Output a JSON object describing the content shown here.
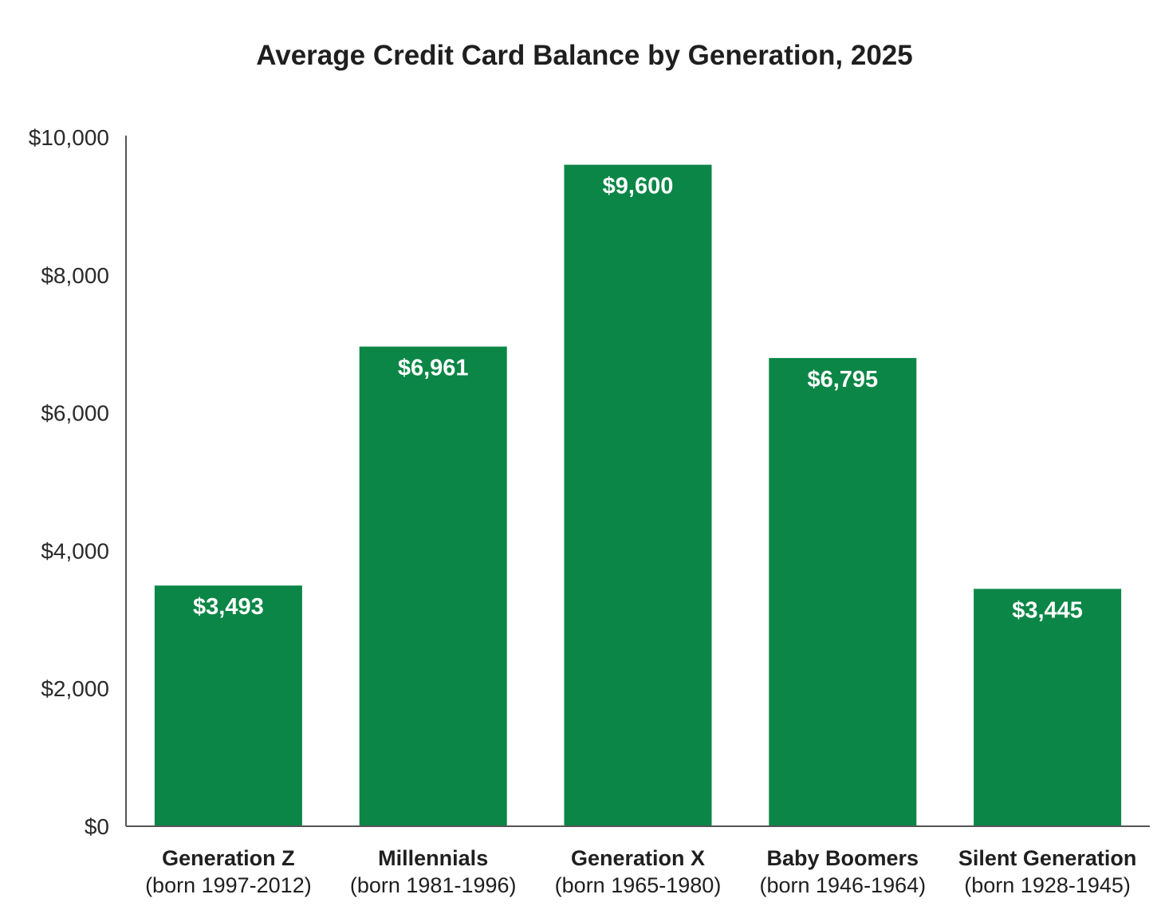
{
  "chart_data": {
    "type": "bar",
    "title": "Average Credit Card Balance by Generation, 2025",
    "xlabel": "",
    "ylabel": "",
    "ylim": [
      0,
      10000
    ],
    "yticks": [
      0,
      2000,
      4000,
      6000,
      8000,
      10000
    ],
    "ytick_labels": [
      "$0",
      "$2,000",
      "$4,000",
      "$6,000",
      "$8,000",
      "$10,000"
    ],
    "grid": false,
    "categories": [
      {
        "name": "Generation Z",
        "born": "(born 1997-2012)"
      },
      {
        "name": "Millennials",
        "born": "(born 1981-1996)"
      },
      {
        "name": "Generation X",
        "born": "(born 1965-1980)"
      },
      {
        "name": "Baby Boomers",
        "born": "(born 1946-1964)"
      },
      {
        "name": "Silent Generation",
        "born": "(born 1928-1945)"
      }
    ],
    "values": [
      3493,
      6961,
      9600,
      6795,
      3445
    ],
    "value_labels": [
      "$3,493",
      "$6,961",
      "$9,600",
      "$6,795",
      "$3,445"
    ],
    "bar_color": "#0b8646",
    "axis_color": "#555555"
  }
}
